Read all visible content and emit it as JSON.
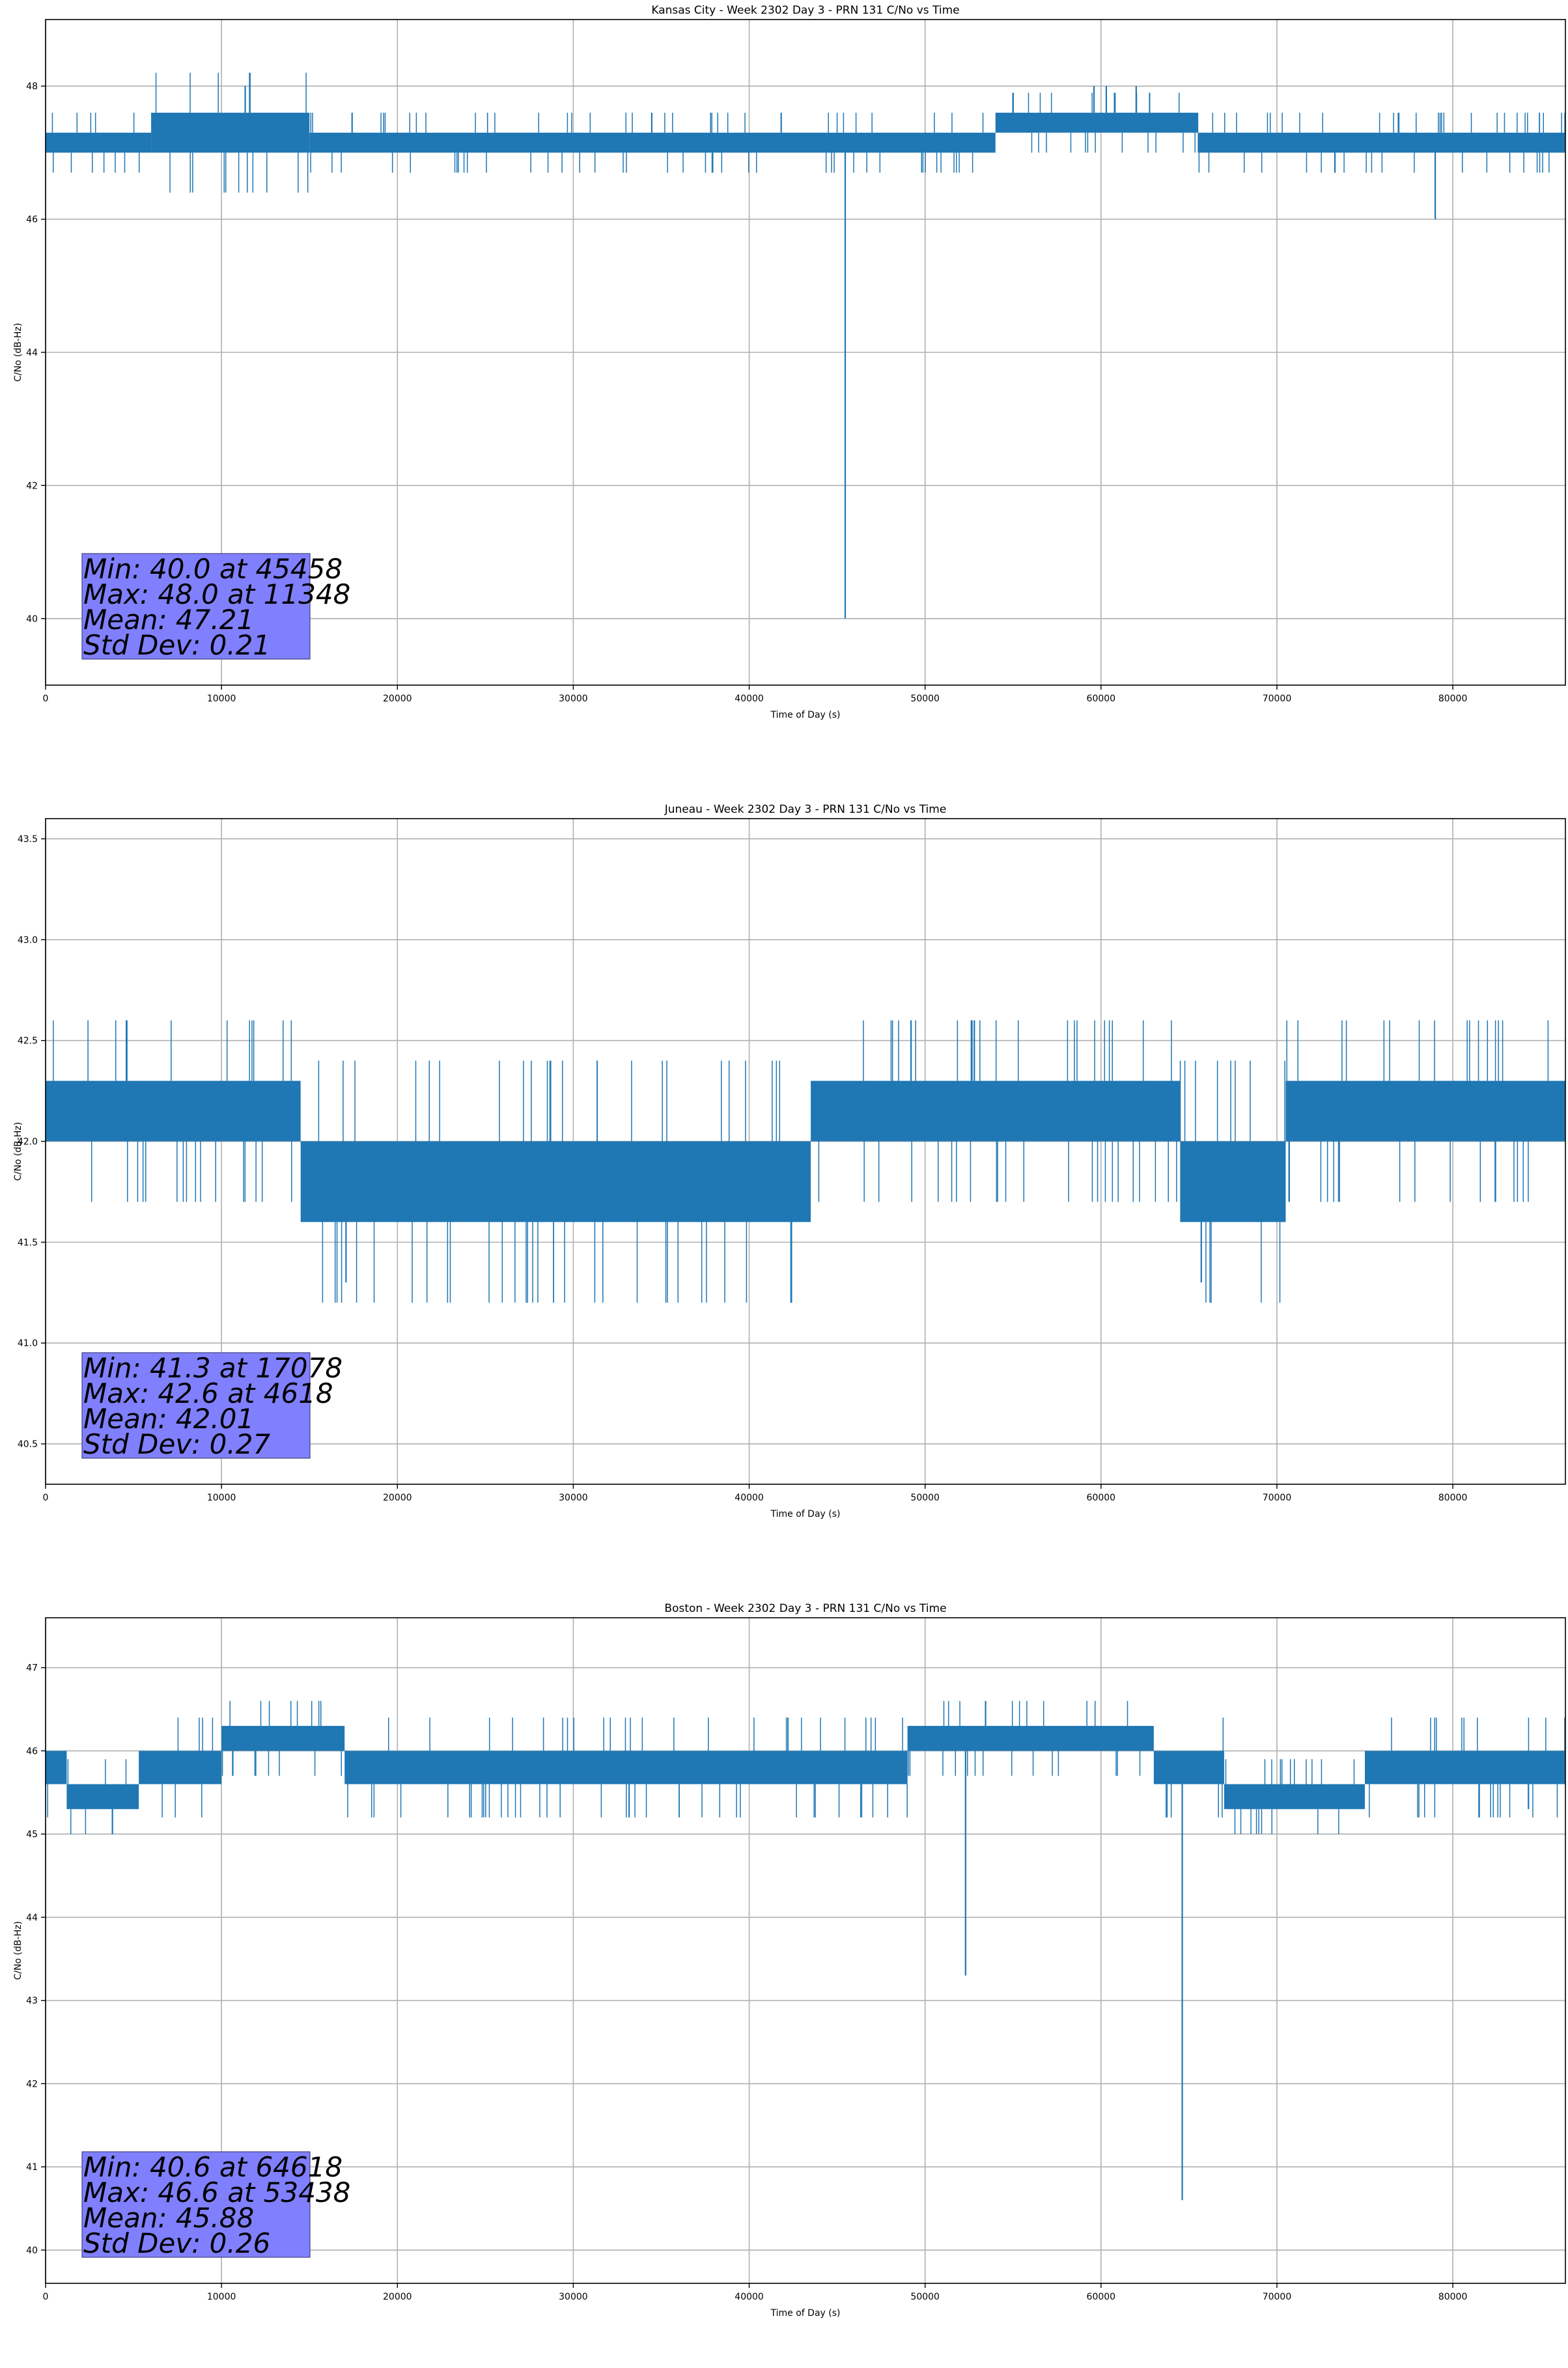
{
  "chart_data": [
    {
      "type": "line",
      "title": "Kansas City - Week 2302 Day 3 - PRN 131 C/No vs Time",
      "xlabel": "Time of Day (s)",
      "ylabel": "C/No (dB-Hz)",
      "xlim": [
        0,
        86400
      ],
      "ylim": [
        39.0,
        49.0
      ],
      "xticks": [
        0,
        10000,
        20000,
        30000,
        40000,
        50000,
        60000,
        70000,
        80000
      ],
      "yticks": [
        40,
        42,
        44,
        46,
        48
      ],
      "ytick_decimals": 0,
      "grid": true,
      "line_color": "#1f77b4",
      "stats_box_color": "#8080ff",
      "stats": [
        "Min: 40.0 at 45458",
        "Max: 48.0 at 11348",
        "Mean: 47.21",
        "Std Dev: 0.21"
      ],
      "series": [
        {
          "values_summary": "main band",
          "bands": [
            {
              "x": [
                0,
                6000
              ],
              "low": 47.0,
              "high": 47.3
            },
            {
              "x": [
                6000,
                15000
              ],
              "low": 47.0,
              "high": 47.6
            },
            {
              "x": [
                15000,
                54000
              ],
              "low": 47.0,
              "high": 47.3
            },
            {
              "x": [
                54000,
                65500
              ],
              "low": 47.3,
              "high": 47.6
            },
            {
              "x": [
                65500,
                86400
              ],
              "low": 47.0,
              "high": 47.3
            }
          ],
          "spikes": [
            {
              "x": 45458,
              "y": 40.0
            },
            {
              "x": 79000,
              "y": 46.0
            },
            {
              "x": 11348,
              "y": 48.0
            },
            {
              "x": 59600,
              "y": 48.0
            },
            {
              "x": 60300,
              "y": 48.0
            },
            {
              "x": 62000,
              "y": 48.0
            }
          ]
        }
      ]
    },
    {
      "type": "line",
      "title": "Juneau - Week 2302 Day 3 - PRN 131 C/No vs Time",
      "xlabel": "Time of Day (s)",
      "ylabel": "C/No (dB-Hz)",
      "xlim": [
        0,
        86400
      ],
      "ylim": [
        40.3,
        43.6
      ],
      "xticks": [
        0,
        10000,
        20000,
        30000,
        40000,
        50000,
        60000,
        70000,
        80000
      ],
      "yticks": [
        40.5,
        41.0,
        41.5,
        42.0,
        42.5,
        43.0,
        43.5
      ],
      "ytick_decimals": 1,
      "grid": true,
      "line_color": "#1f77b4",
      "stats_box_color": "#8080ff",
      "stats": [
        "Min: 41.3 at 17078",
        "Max: 42.6 at 4618",
        "Mean: 42.01",
        "Std Dev: 0.27"
      ],
      "series": [
        {
          "bands": [
            {
              "x": [
                0,
                14500
              ],
              "low": 42.0,
              "high": 42.3
            },
            {
              "x": [
                14500,
                43500
              ],
              "low": 41.6,
              "high": 42.0
            },
            {
              "x": [
                43500,
                64500
              ],
              "low": 42.0,
              "high": 42.3
            },
            {
              "x": [
                64500,
                70500
              ],
              "low": 41.6,
              "high": 42.0
            },
            {
              "x": [
                70500,
                86400
              ],
              "low": 42.0,
              "high": 42.3
            }
          ],
          "spikes": [
            {
              "x": 17078,
              "y": 41.3
            },
            {
              "x": 65700,
              "y": 41.3
            },
            {
              "x": 4618,
              "y": 42.6
            },
            {
              "x": 49200,
              "y": 42.6
            }
          ]
        }
      ]
    },
    {
      "type": "line",
      "title": "Boston - Week 2302 Day 3 - PRN 131 C/No vs Time",
      "xlabel": "Time of Day (s)",
      "ylabel": "C/No (dB-Hz)",
      "xlim": [
        0,
        86400
      ],
      "ylim": [
        39.6,
        47.6
      ],
      "xticks": [
        0,
        10000,
        20000,
        30000,
        40000,
        50000,
        60000,
        70000,
        80000
      ],
      "yticks": [
        40,
        41,
        42,
        43,
        44,
        45,
        46,
        47
      ],
      "ytick_decimals": 0,
      "grid": true,
      "line_color": "#1f77b4",
      "stats_box_color": "#8080ff",
      "stats": [
        "Min: 40.6 at 64618",
        "Max: 46.6 at 53438",
        "Mean: 45.88",
        "Std Dev: 0.26"
      ],
      "series": [
        {
          "bands": [
            {
              "x": [
                0,
                1200
              ],
              "low": 45.6,
              "high": 46.0
            },
            {
              "x": [
                1200,
                5300
              ],
              "low": 45.3,
              "high": 45.6
            },
            {
              "x": [
                5300,
                10000
              ],
              "low": 45.6,
              "high": 46.0
            },
            {
              "x": [
                10000,
                17000
              ],
              "low": 46.0,
              "high": 46.3
            },
            {
              "x": [
                17000,
                49000
              ],
              "low": 45.6,
              "high": 46.0
            },
            {
              "x": [
                49000,
                63000
              ],
              "low": 46.0,
              "high": 46.3
            },
            {
              "x": [
                63000,
                67000
              ],
              "low": 45.6,
              "high": 46.0
            },
            {
              "x": [
                67000,
                75000
              ],
              "low": 45.3,
              "high": 45.6
            },
            {
              "x": [
                75000,
                86400
              ],
              "low": 45.6,
              "high": 46.0
            }
          ],
          "spikes": [
            {
              "x": 64618,
              "y": 40.6
            },
            {
              "x": 52300,
              "y": 43.3
            },
            {
              "x": 3800,
              "y": 45.0
            },
            {
              "x": 84300,
              "y": 45.3
            },
            {
              "x": 53438,
              "y": 46.6
            }
          ]
        }
      ]
    }
  ]
}
